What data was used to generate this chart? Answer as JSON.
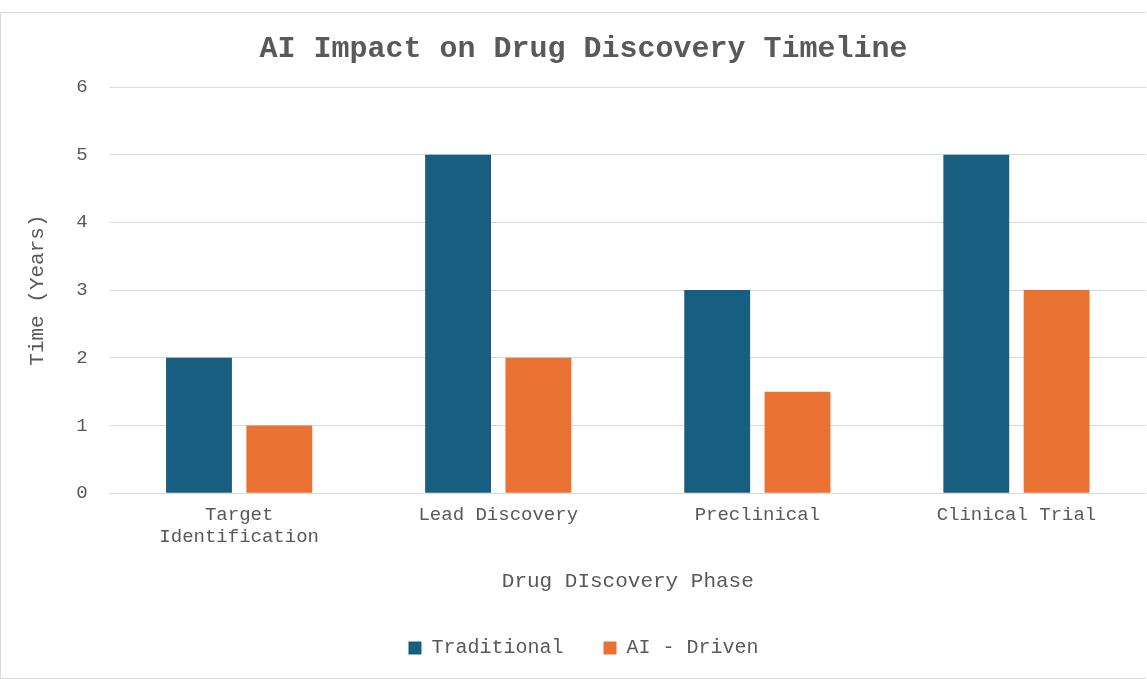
{
  "chart_data": {
    "type": "bar",
    "title": "AI Impact on Drug Discovery Timeline",
    "xlabel": "Drug DIscovery Phase",
    "ylabel": "Time (Years)",
    "categories": [
      "Target Identification",
      "Lead Discovery",
      "Preclinical",
      "Clinical Trial"
    ],
    "series": [
      {
        "name": "Traditional",
        "color": "#175e80",
        "values": [
          2,
          5,
          3,
          5
        ]
      },
      {
        "name": "AI - Driven",
        "color": "#e97132",
        "values": [
          1,
          2,
          1.5,
          3
        ]
      }
    ],
    "ylim": [
      0,
      6
    ],
    "yticks": [
      0,
      1,
      2,
      3,
      4,
      5,
      6
    ],
    "grid": "y",
    "legend": "bottom"
  }
}
